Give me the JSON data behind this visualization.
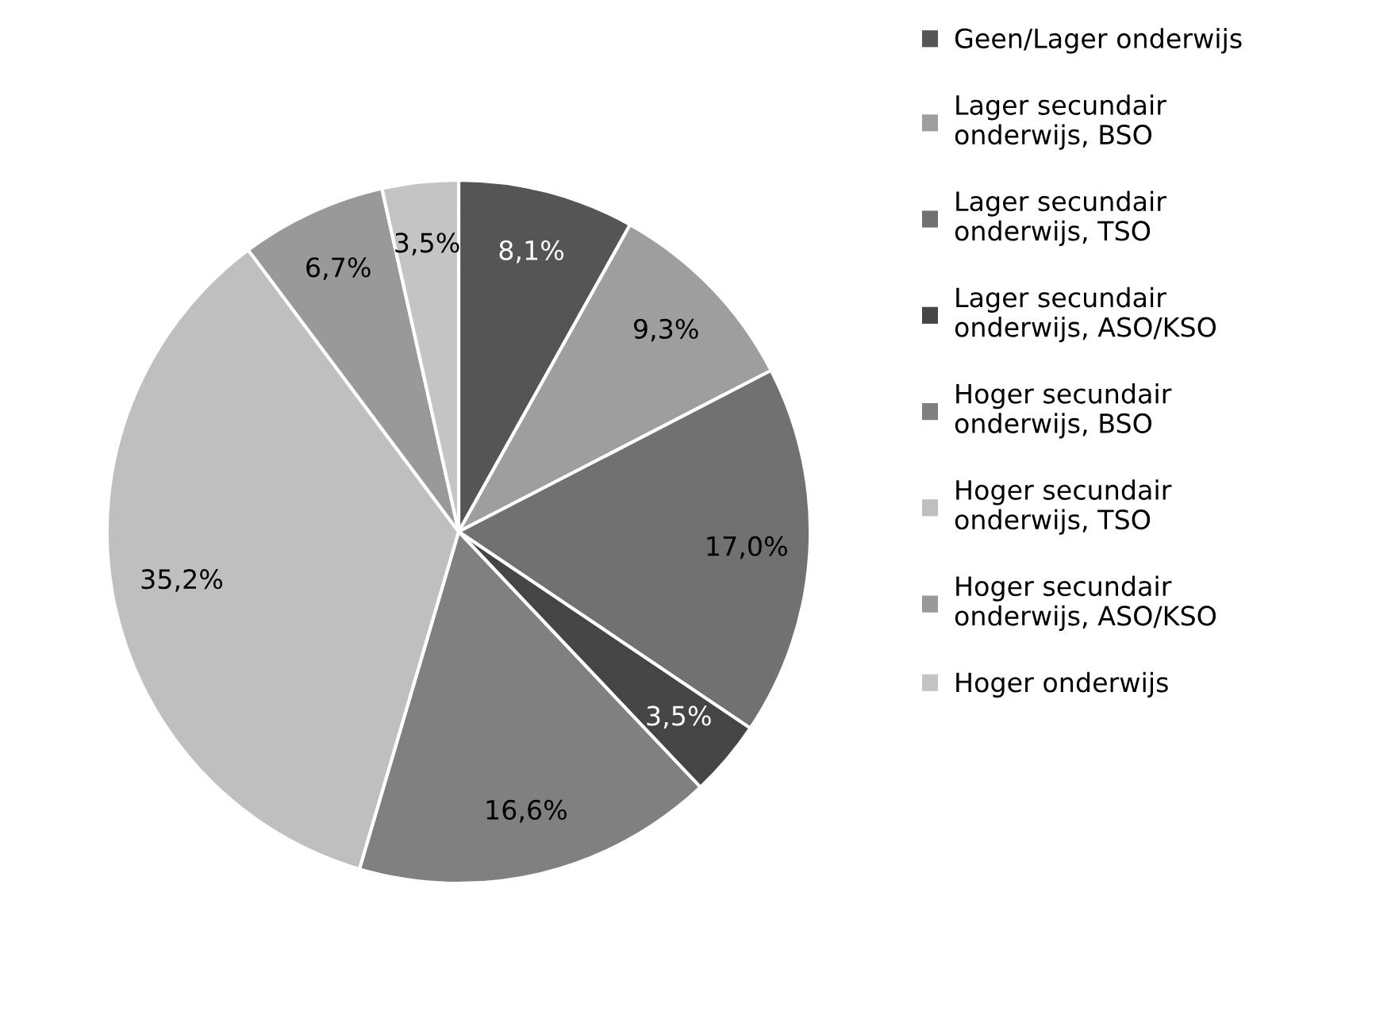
{
  "chart_data": {
    "type": "pie",
    "categories": [
      "Geen/Lager onderwijs",
      "Lager secundair onderwijs, BSO",
      "Lager secundair onderwijs, TSO",
      "Lager secundair onderwijs, ASO/KSO",
      "Hoger secundair onderwijs, BSO",
      "Hoger secundair onderwijs, TSO",
      "Hoger secundair onderwijs, ASO/KSO",
      "Hoger onderwijs"
    ],
    "values": [
      8.1,
      9.3,
      17.0,
      3.5,
      16.6,
      35.2,
      6.7,
      3.5
    ],
    "value_labels": [
      "8,1%",
      "9,3%",
      "17,0%",
      "3,5%",
      "16,6%",
      "35,2%",
      "6,7%",
      "3,5%"
    ],
    "colors": [
      "#555555",
      "#9e9e9e",
      "#717171",
      "#454545",
      "#808080",
      "#bfbfbf",
      "#999999",
      "#c4c4c4"
    ],
    "legend": "right"
  }
}
